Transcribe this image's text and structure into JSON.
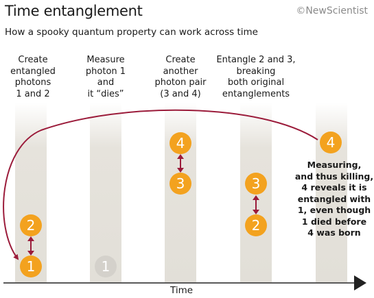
{
  "header": {
    "title": "Time entanglement",
    "brand": "©NewScientist",
    "subtitle": "How a spooky quantum property can work across time"
  },
  "steps": [
    {
      "label": "Create\nentangled\nphotons\n1 and 2"
    },
    {
      "label": "Measure\nphoton 1\nand\nit “dies”"
    },
    {
      "label": "Create\nanother\nphoton pair\n(3 and 4)"
    },
    {
      "label": "Entangle 2 and 3,\nbreaking\nboth original\nentanglements"
    }
  ],
  "final_note": "Measuring,\nand thus killing,\n4 reveals it is\nentangled with\n1, even though\n1 died before\n4 was born",
  "axis": {
    "label": "Time"
  },
  "photons": {
    "col1_top": "2",
    "col1_bottom": "1",
    "col2_dead": "1",
    "col3_top": "4",
    "col3_bottom": "3",
    "col4_top": "3",
    "col4_bottom": "2",
    "col5_top": "4"
  },
  "colors": {
    "photon": "#f3a21f",
    "dead_photon": "#d4d1cb",
    "link": "#9b1b3a",
    "band": "#e4e1da"
  }
}
